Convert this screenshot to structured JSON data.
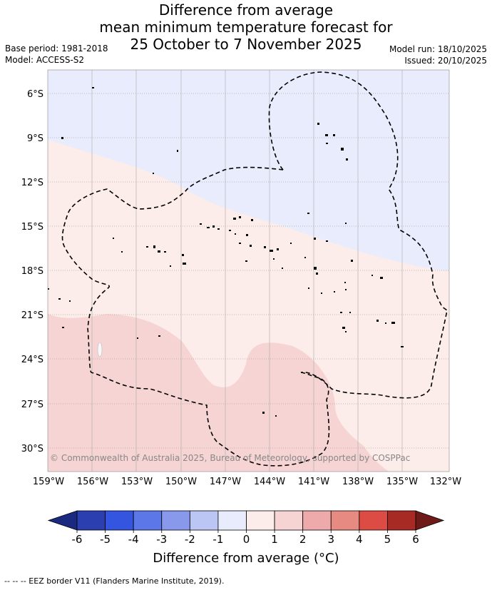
{
  "title": {
    "line1": "Difference from average",
    "line2": "mean minimum temperature forecast for",
    "line3": "25 October to 7 November 2025"
  },
  "meta": {
    "base_period": "Base period: 1981-2018",
    "model": "Model: ACCESS-S2",
    "model_run": "Model run: 18/10/2025",
    "issued": "Issued: 20/10/2025"
  },
  "map": {
    "lat_labels": [
      "6°S",
      "9°S",
      "12°S",
      "15°S",
      "18°S",
      "21°S",
      "24°S",
      "27°S",
      "30°S"
    ],
    "lon_labels": [
      "159°W",
      "156°W",
      "153°W",
      "150°W",
      "147°W",
      "144°W",
      "141°W",
      "138°W",
      "135°W",
      "132°W"
    ],
    "copyright": "© Commonwealth of Australia 2025, Bureau of Meteorology, supported by COSPPac"
  },
  "colorbar": {
    "ticks": [
      "-6",
      "-5",
      "-4",
      "-3",
      "-2",
      "-1",
      "0",
      "1",
      "2",
      "3",
      "4",
      "5",
      "6"
    ],
    "colors": [
      "#2b3fb0",
      "#3355e0",
      "#5c78e8",
      "#8899ec",
      "#bcc6f4",
      "#e8ecfc",
      "#fcecea",
      "#f5d4d3",
      "#eeaaaa",
      "#e78b82",
      "#dc4c44",
      "#a82a25"
    ],
    "low_extend_color": "#1a2a80",
    "high_extend_color": "#6e1a18",
    "label": "Difference from average (°C)"
  },
  "footnote": "-- -- -- EEZ border V11 (Flanders Marine Institute, 2019)."
}
